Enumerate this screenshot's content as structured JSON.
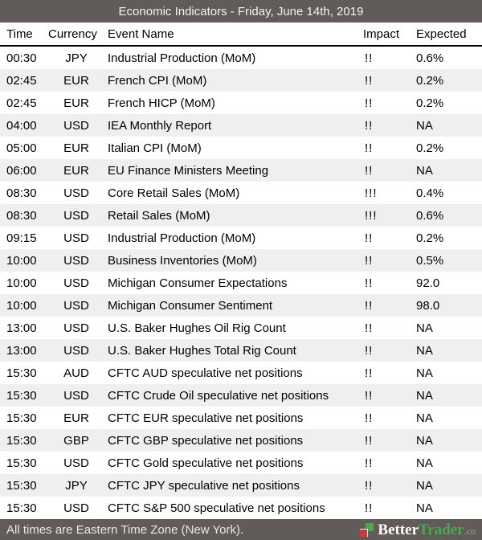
{
  "header": {
    "title": "Economic Indicators - Friday, June 14th, 2019"
  },
  "columns": [
    "Time",
    "Currency",
    "Event Name",
    "Impact",
    "Expected"
  ],
  "rows": [
    {
      "time": "00:30",
      "currency": "JPY",
      "event": "Industrial Production (MoM)",
      "impact": "!!",
      "expected": "0.6%"
    },
    {
      "time": "02:45",
      "currency": "EUR",
      "event": "French CPI (MoM)",
      "impact": "!!",
      "expected": "0.2%"
    },
    {
      "time": "02:45",
      "currency": "EUR",
      "event": "French HICP (MoM)",
      "impact": "!!",
      "expected": "0.2%"
    },
    {
      "time": "04:00",
      "currency": "USD",
      "event": "IEA Monthly Report",
      "impact": "!!",
      "expected": "NA"
    },
    {
      "time": "05:00",
      "currency": "EUR",
      "event": "Italian CPI (MoM)",
      "impact": "!!",
      "expected": "0.2%"
    },
    {
      "time": "06:00",
      "currency": "EUR",
      "event": "EU Finance Ministers Meeting",
      "impact": "!!",
      "expected": "NA"
    },
    {
      "time": "08:30",
      "currency": "USD",
      "event": "Core Retail Sales (MoM)",
      "impact": "!!!",
      "expected": "0.4%"
    },
    {
      "time": "08:30",
      "currency": "USD",
      "event": "Retail Sales (MoM)",
      "impact": "!!!",
      "expected": "0.6%"
    },
    {
      "time": "09:15",
      "currency": "USD",
      "event": "Industrial Production (MoM)",
      "impact": "!!",
      "expected": "0.2%"
    },
    {
      "time": "10:00",
      "currency": "USD",
      "event": "Business Inventories (MoM)",
      "impact": "!!",
      "expected": "0.5%"
    },
    {
      "time": "10:00",
      "currency": "USD",
      "event": "Michigan Consumer Expectations",
      "impact": "!!",
      "expected": "92.0"
    },
    {
      "time": "10:00",
      "currency": "USD",
      "event": "Michigan Consumer Sentiment",
      "impact": "!!",
      "expected": "98.0"
    },
    {
      "time": "13:00",
      "currency": "USD",
      "event": "U.S. Baker Hughes Oil Rig Count",
      "impact": "!!",
      "expected": "NA"
    },
    {
      "time": "13:00",
      "currency": "USD",
      "event": "U.S. Baker Hughes Total Rig Count",
      "impact": "!!",
      "expected": "NA"
    },
    {
      "time": "15:30",
      "currency": "AUD",
      "event": "CFTC AUD speculative net positions",
      "impact": "!!",
      "expected": "NA"
    },
    {
      "time": "15:30",
      "currency": "USD",
      "event": "CFTC Crude Oil speculative net positions",
      "impact": "!!",
      "expected": "NA"
    },
    {
      "time": "15:30",
      "currency": "EUR",
      "event": "CFTC EUR speculative net positions",
      "impact": "!!",
      "expected": "NA"
    },
    {
      "time": "15:30",
      "currency": "GBP",
      "event": "CFTC GBP speculative net positions",
      "impact": "!!",
      "expected": "NA"
    },
    {
      "time": "15:30",
      "currency": "USD",
      "event": "CFTC Gold speculative net positions",
      "impact": "!!",
      "expected": "NA"
    },
    {
      "time": "15:30",
      "currency": "JPY",
      "event": "CFTC JPY speculative net positions",
      "impact": "!!",
      "expected": "NA"
    },
    {
      "time": "15:30",
      "currency": "USD",
      "event": "CFTC S&P 500 speculative net positions",
      "impact": "!!",
      "expected": "NA"
    }
  ],
  "footer": {
    "note": "All times are Eastern Time Zone (New York).",
    "brand": {
      "better": "Better",
      "trader": "Trader",
      "suffix": ".co"
    }
  },
  "colors": {
    "bar_bg": "#615c59",
    "bar_text": "#f2f2f2",
    "text": "#000000",
    "row_alt": "#efefef",
    "brand_green": "#4aa84e",
    "brand_red": "#cc3a36"
  }
}
